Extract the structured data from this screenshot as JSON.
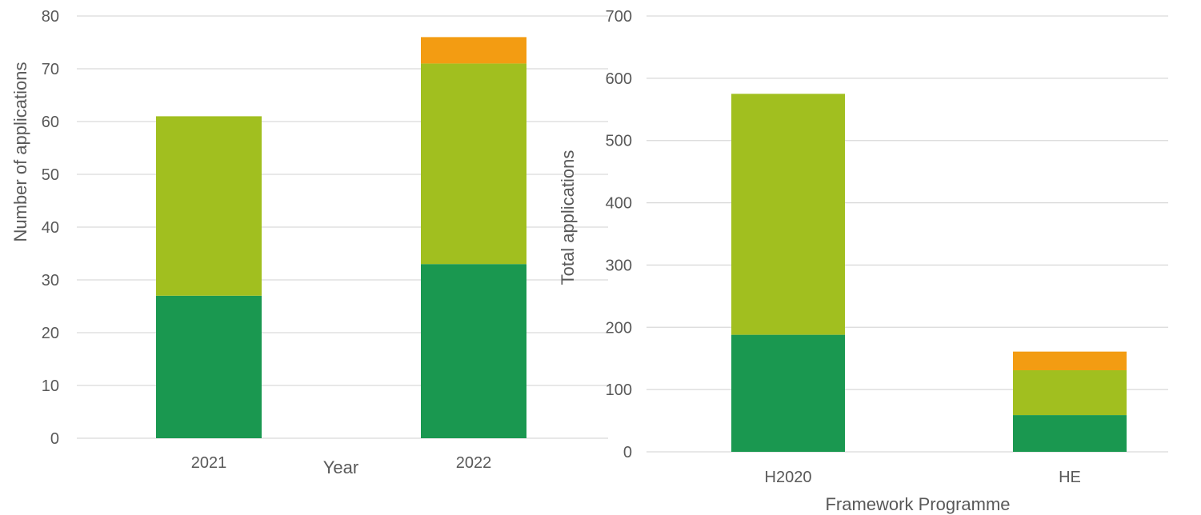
{
  "chart_data": [
    {
      "type": "bar",
      "stacked": true,
      "categories": [
        "2021",
        "2022"
      ],
      "series": [
        {
          "color": "#1a9850",
          "values": [
            27,
            33
          ]
        },
        {
          "color": "#a1bf1f",
          "values": [
            34,
            38
          ]
        },
        {
          "color": "#f39c12",
          "values": [
            0,
            5
          ]
        }
      ],
      "xlabel": "Year",
      "ylabel": "Number of applications",
      "ylim": [
        0,
        80
      ],
      "yticks": [
        0,
        10,
        20,
        30,
        40,
        50,
        60,
        70,
        80
      ],
      "grid": true
    },
    {
      "type": "bar",
      "stacked": true,
      "categories": [
        "H2020",
        "HE"
      ],
      "series": [
        {
          "color": "#1a9850",
          "values": [
            188,
            59
          ]
        },
        {
          "color": "#a1bf1f",
          "values": [
            387,
            72
          ]
        },
        {
          "color": "#f39c12",
          "values": [
            0,
            30
          ]
        }
      ],
      "xlabel": "Framework Programme",
      "ylabel": "Total applications",
      "ylim": [
        0,
        700
      ],
      "yticks": [
        0,
        100,
        200,
        300,
        400,
        500,
        600,
        700
      ],
      "grid": true
    }
  ]
}
